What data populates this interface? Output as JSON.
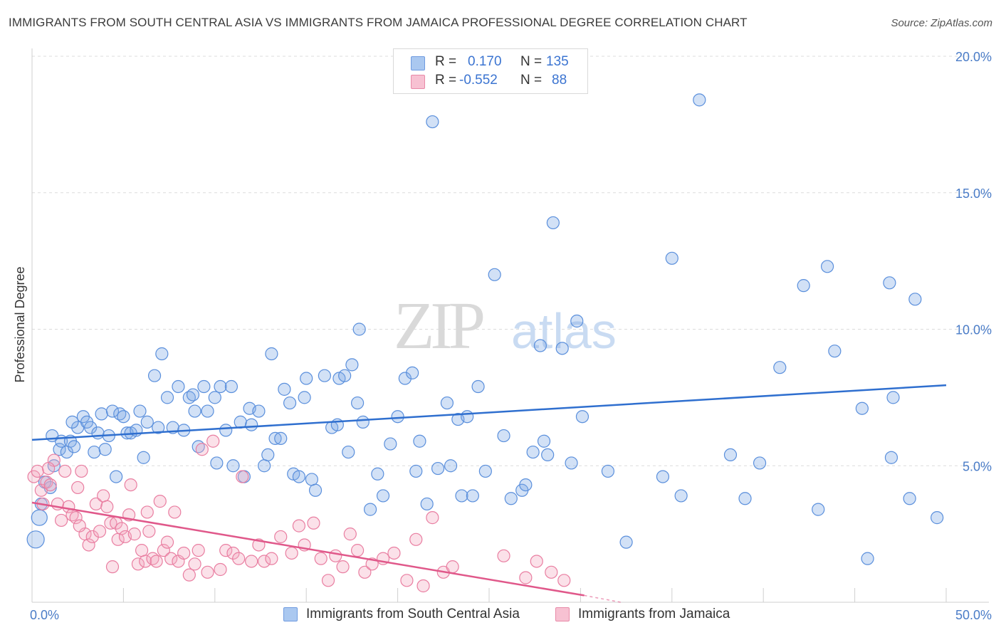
{
  "header": {
    "title": "IMMIGRANTS FROM SOUTH CENTRAL ASIA VS IMMIGRANTS FROM JAMAICA PROFESSIONAL DEGREE CORRELATION CHART",
    "source": "Source: ZipAtlas.com"
  },
  "watermark": {
    "zip": "ZIP",
    "atlas": "atlas"
  },
  "legend": {
    "r_label": "R =",
    "n_label": "N =",
    "rows": [
      {
        "r": "0.170",
        "n": "135",
        "color": "#aac8f0",
        "border": "#6f9be0"
      },
      {
        "r": "-0.552",
        "n": "88",
        "color": "#f7c1d2",
        "border": "#e88aa8"
      }
    ]
  },
  "chart_data": {
    "type": "scatter",
    "title": "IMMIGRANTS FROM SOUTH CENTRAL ASIA VS IMMIGRANTS FROM JAMAICA PROFESSIONAL DEGREE CORRELATION CHART",
    "xlabel": "",
    "ylabel": "Professional Degree",
    "xlim": [
      0,
      50
    ],
    "ylim": [
      0,
      20
    ],
    "x_tick_labels": [
      "0.0%",
      "50.0%"
    ],
    "y_tick_labels": [
      "5.0%",
      "10.0%",
      "15.0%",
      "20.0%"
    ],
    "y_ticks": [
      5,
      10,
      15,
      20
    ],
    "grid": true,
    "series": [
      {
        "name": "Immigrants from South Central Asia",
        "color": "#7ea9e6",
        "stroke": "#5a8fdc",
        "trend": {
          "x": [
            0,
            50
          ],
          "y": [
            5.95,
            7.95
          ],
          "color": "#2f6fcf"
        },
        "points": [
          [
            0.2,
            2.3
          ],
          [
            0.4,
            3.1
          ],
          [
            0.5,
            3.6
          ],
          [
            0.7,
            4.4
          ],
          [
            1.0,
            4.2
          ],
          [
            1.2,
            5.0
          ],
          [
            1.5,
            5.6
          ],
          [
            1.6,
            5.9
          ],
          [
            1.9,
            5.5
          ],
          [
            2.1,
            5.9
          ],
          [
            2.3,
            5.7
          ],
          [
            2.5,
            6.4
          ],
          [
            2.8,
            6.8
          ],
          [
            3.0,
            6.6
          ],
          [
            3.2,
            6.4
          ],
          [
            3.4,
            5.5
          ],
          [
            3.6,
            6.2
          ],
          [
            3.8,
            6.9
          ],
          [
            4.0,
            5.6
          ],
          [
            4.2,
            6.1
          ],
          [
            4.4,
            7.0
          ],
          [
            4.6,
            4.6
          ],
          [
            4.8,
            6.9
          ],
          [
            5.0,
            6.8
          ],
          [
            5.2,
            6.2
          ],
          [
            5.4,
            6.2
          ],
          [
            5.7,
            6.3
          ],
          [
            5.9,
            7.0
          ],
          [
            6.1,
            5.3
          ],
          [
            6.3,
            6.6
          ],
          [
            6.7,
            8.3
          ],
          [
            6.9,
            6.4
          ],
          [
            7.1,
            9.1
          ],
          [
            7.4,
            7.5
          ],
          [
            7.7,
            6.4
          ],
          [
            8.0,
            7.9
          ],
          [
            8.3,
            6.3
          ],
          [
            8.6,
            7.5
          ],
          [
            8.8,
            7.6
          ],
          [
            8.9,
            7.0
          ],
          [
            9.1,
            5.7
          ],
          [
            9.4,
            7.9
          ],
          [
            9.6,
            7.0
          ],
          [
            10.0,
            7.5
          ],
          [
            10.1,
            5.1
          ],
          [
            10.3,
            7.9
          ],
          [
            10.6,
            6.3
          ],
          [
            10.9,
            7.9
          ],
          [
            11.0,
            5.0
          ],
          [
            11.4,
            6.6
          ],
          [
            11.6,
            4.6
          ],
          [
            11.9,
            7.1
          ],
          [
            12.0,
            6.5
          ],
          [
            12.4,
            7.0
          ],
          [
            12.7,
            5.0
          ],
          [
            12.9,
            5.4
          ],
          [
            13.1,
            9.1
          ],
          [
            13.3,
            6.0
          ],
          [
            13.6,
            6.0
          ],
          [
            13.8,
            7.8
          ],
          [
            14.1,
            7.3
          ],
          [
            14.3,
            4.7
          ],
          [
            14.6,
            4.6
          ],
          [
            14.9,
            7.5
          ],
          [
            15.0,
            8.2
          ],
          [
            15.3,
            4.5
          ],
          [
            15.5,
            4.1
          ],
          [
            16.0,
            8.3
          ],
          [
            16.4,
            6.4
          ],
          [
            16.7,
            6.5
          ],
          [
            16.8,
            8.2
          ],
          [
            17.1,
            8.3
          ],
          [
            17.3,
            5.5
          ],
          [
            17.5,
            8.7
          ],
          [
            17.8,
            7.3
          ],
          [
            17.9,
            10.0
          ],
          [
            18.1,
            6.6
          ],
          [
            18.5,
            3.4
          ],
          [
            18.9,
            4.7
          ],
          [
            19.2,
            3.9
          ],
          [
            19.6,
            5.8
          ],
          [
            20.0,
            6.8
          ],
          [
            20.4,
            8.2
          ],
          [
            20.8,
            8.4
          ],
          [
            21.0,
            4.8
          ],
          [
            21.2,
            5.9
          ],
          [
            21.6,
            3.6
          ],
          [
            21.9,
            17.6
          ],
          [
            22.2,
            4.9
          ],
          [
            22.7,
            7.3
          ],
          [
            22.9,
            5.0
          ],
          [
            23.3,
            6.7
          ],
          [
            23.5,
            3.9
          ],
          [
            23.8,
            6.8
          ],
          [
            24.1,
            3.9
          ],
          [
            24.4,
            7.9
          ],
          [
            24.8,
            4.8
          ],
          [
            25.3,
            12.0
          ],
          [
            25.8,
            6.1
          ],
          [
            26.2,
            3.8
          ],
          [
            26.8,
            4.1
          ],
          [
            27.0,
            4.3
          ],
          [
            27.4,
            5.5
          ],
          [
            27.8,
            9.4
          ],
          [
            28.0,
            5.9
          ],
          [
            28.2,
            5.4
          ],
          [
            28.5,
            13.9
          ],
          [
            29.0,
            9.3
          ],
          [
            29.5,
            5.1
          ],
          [
            29.8,
            10.3
          ],
          [
            30.1,
            6.8
          ],
          [
            31.5,
            4.8
          ],
          [
            32.5,
            2.2
          ],
          [
            34.5,
            4.6
          ],
          [
            35.0,
            12.6
          ],
          [
            35.5,
            3.9
          ],
          [
            36.5,
            18.4
          ],
          [
            38.2,
            5.4
          ],
          [
            39.0,
            3.8
          ],
          [
            39.8,
            5.1
          ],
          [
            40.9,
            8.6
          ],
          [
            42.2,
            11.6
          ],
          [
            43.0,
            3.4
          ],
          [
            43.5,
            12.3
          ],
          [
            43.9,
            9.2
          ],
          [
            45.4,
            7.1
          ],
          [
            45.7,
            1.6
          ],
          [
            46.9,
            11.7
          ],
          [
            47.0,
            5.3
          ],
          [
            47.1,
            7.5
          ],
          [
            48.0,
            3.8
          ],
          [
            48.3,
            11.1
          ],
          [
            49.5,
            3.1
          ],
          [
            2.2,
            6.6
          ],
          [
            1.1,
            6.1
          ]
        ]
      },
      {
        "name": "Immigrants from Jamaica",
        "color": "#f3a9c0",
        "stroke": "#e97ea1",
        "trend": {
          "x": [
            0,
            30.2
          ],
          "y": [
            3.65,
            0.25
          ],
          "color": "#e0588a",
          "dash_to": [
            32.2,
            0.0
          ]
        },
        "points": [
          [
            0.1,
            4.6
          ],
          [
            0.3,
            4.8
          ],
          [
            0.5,
            4.1
          ],
          [
            0.6,
            3.6
          ],
          [
            0.8,
            4.4
          ],
          [
            1.0,
            4.3
          ],
          [
            1.2,
            5.2
          ],
          [
            1.4,
            3.6
          ],
          [
            1.6,
            3.0
          ],
          [
            1.8,
            4.8
          ],
          [
            2.0,
            3.5
          ],
          [
            2.2,
            3.2
          ],
          [
            2.4,
            3.1
          ],
          [
            2.5,
            4.2
          ],
          [
            2.7,
            4.8
          ],
          [
            2.9,
            2.5
          ],
          [
            3.1,
            2.1
          ],
          [
            3.3,
            2.4
          ],
          [
            3.5,
            3.6
          ],
          [
            3.7,
            2.6
          ],
          [
            3.9,
            3.9
          ],
          [
            4.1,
            3.5
          ],
          [
            4.3,
            2.9
          ],
          [
            4.4,
            1.3
          ],
          [
            4.6,
            2.9
          ],
          [
            4.7,
            2.3
          ],
          [
            4.9,
            2.7
          ],
          [
            5.1,
            2.4
          ],
          [
            5.3,
            3.2
          ],
          [
            5.4,
            4.3
          ],
          [
            5.6,
            2.5
          ],
          [
            5.8,
            1.4
          ],
          [
            6.0,
            1.9
          ],
          [
            6.2,
            1.5
          ],
          [
            6.4,
            2.6
          ],
          [
            6.6,
            1.6
          ],
          [
            6.8,
            1.5
          ],
          [
            7.0,
            3.7
          ],
          [
            7.2,
            1.9
          ],
          [
            7.4,
            2.2
          ],
          [
            7.6,
            1.6
          ],
          [
            7.8,
            3.3
          ],
          [
            8.0,
            1.5
          ],
          [
            8.3,
            1.8
          ],
          [
            8.6,
            1.0
          ],
          [
            8.9,
            1.4
          ],
          [
            9.1,
            1.9
          ],
          [
            9.3,
            5.6
          ],
          [
            9.6,
            1.1
          ],
          [
            9.9,
            5.9
          ],
          [
            10.3,
            1.2
          ],
          [
            10.6,
            1.9
          ],
          [
            11.0,
            1.8
          ],
          [
            11.3,
            1.6
          ],
          [
            11.5,
            4.6
          ],
          [
            12.0,
            1.5
          ],
          [
            12.4,
            2.1
          ],
          [
            12.7,
            1.5
          ],
          [
            13.1,
            1.6
          ],
          [
            13.6,
            2.4
          ],
          [
            14.2,
            1.8
          ],
          [
            14.6,
            2.8
          ],
          [
            14.9,
            2.1
          ],
          [
            15.4,
            2.9
          ],
          [
            15.8,
            1.6
          ],
          [
            16.2,
            0.8
          ],
          [
            16.6,
            1.7
          ],
          [
            17.0,
            1.3
          ],
          [
            17.4,
            2.5
          ],
          [
            17.8,
            1.9
          ],
          [
            18.2,
            1.1
          ],
          [
            18.6,
            1.4
          ],
          [
            19.2,
            1.6
          ],
          [
            19.8,
            1.8
          ],
          [
            20.5,
            0.8
          ],
          [
            21.0,
            2.3
          ],
          [
            21.4,
            0.6
          ],
          [
            21.9,
            3.1
          ],
          [
            22.5,
            1.1
          ],
          [
            23.0,
            1.3
          ],
          [
            25.8,
            1.7
          ],
          [
            27.0,
            0.9
          ],
          [
            27.6,
            1.5
          ],
          [
            28.4,
            1.1
          ],
          [
            29.1,
            0.8
          ],
          [
            0.9,
            4.9
          ],
          [
            2.6,
            2.8
          ],
          [
            6.3,
            3.3
          ]
        ]
      }
    ]
  }
}
